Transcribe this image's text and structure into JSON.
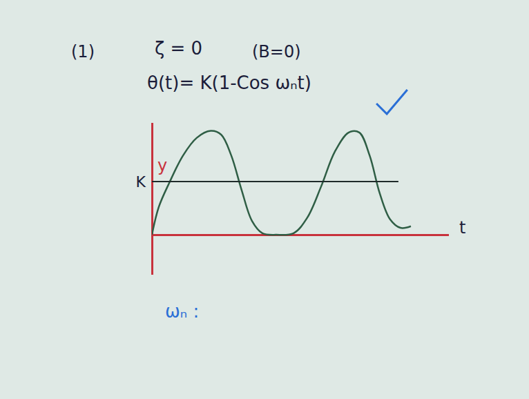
{
  "chart_data": {
    "type": "line",
    "annotations": [
      "(1)",
      "ζ = 0",
      "(B=0)",
      "θ(t)= K(1-Cos ωₙt)",
      "ωₙ :"
    ],
    "x_label": "t",
    "y_label": "y",
    "series": [
      {
        "x": [
          0,
          0.23,
          0.58,
          1.05,
          1.51,
          1.98,
          2.33,
          2.67,
          3.02,
          3.37,
          3.72,
          4.19,
          4.77,
          5.23,
          5.7,
          6.16,
          6.63,
          6.98,
          7.33,
          7.67,
          8.02,
          8.37,
          8.72
        ],
        "values": [
          0,
          0.52,
          0.97,
          1.49,
          1.82,
          1.95,
          1.88,
          1.49,
          0.84,
          0.26,
          0.03,
          0,
          0.03,
          0.32,
          0.91,
          1.56,
          1.92,
          1.92,
          1.49,
          0.78,
          0.29,
          0.13,
          0.16
        ],
        "color": "#2f5e45"
      },
      {
        "x": [
          0,
          8.3
        ],
        "values": [
          1,
          1
        ],
        "color": "#1f2a2a"
      }
    ],
    "xlim": [
      0,
      10
    ],
    "ylim": [
      -0.75,
      2.1
    ],
    "xticks": [],
    "yticks": [
      {
        "value": 1,
        "label": "K"
      }
    ],
    "tick_labels": "y",
    "grid": false
  }
}
